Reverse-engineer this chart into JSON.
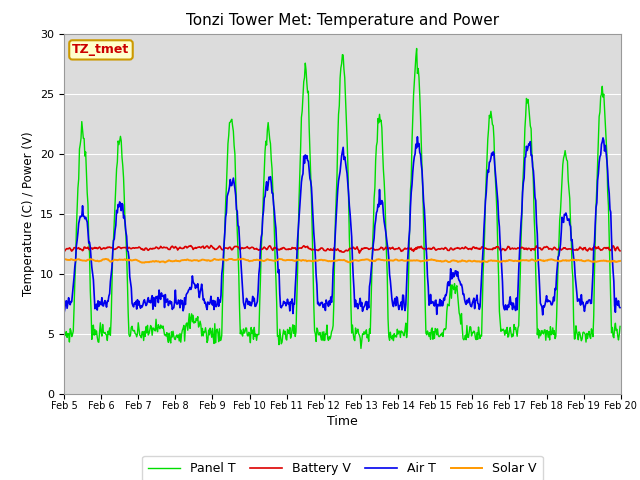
{
  "title": "Tonzi Tower Met: Temperature and Power",
  "xlabel": "Time",
  "ylabel": "Temperature (C) / Power (V)",
  "ylim": [
    0,
    30
  ],
  "yticks": [
    0,
    5,
    10,
    15,
    20,
    25,
    30
  ],
  "bg_color": "#dcdcdc",
  "fig_color": "#ffffff",
  "annotation_text": "TZ_tmet",
  "annotation_bg": "#ffffcc",
  "annotation_border": "#cc9900",
  "annotation_text_color": "#cc0000",
  "series_colors": {
    "Panel T": "#00dd00",
    "Battery V": "#dd0000",
    "Air T": "#0000ee",
    "Solar V": "#ff9900"
  },
  "x_tick_labels": [
    "Feb 5",
    "Feb 6",
    "Feb 7",
    "Feb 8",
    "Feb 9",
    "Feb 10",
    "Feb 11",
    "Feb 12",
    "Feb 13",
    "Feb 14",
    "Feb 15",
    "Feb 16",
    "Feb 17",
    "Feb 18",
    "Feb 19",
    "Feb 20"
  ],
  "n_days": 15,
  "pts_per_day": 48
}
